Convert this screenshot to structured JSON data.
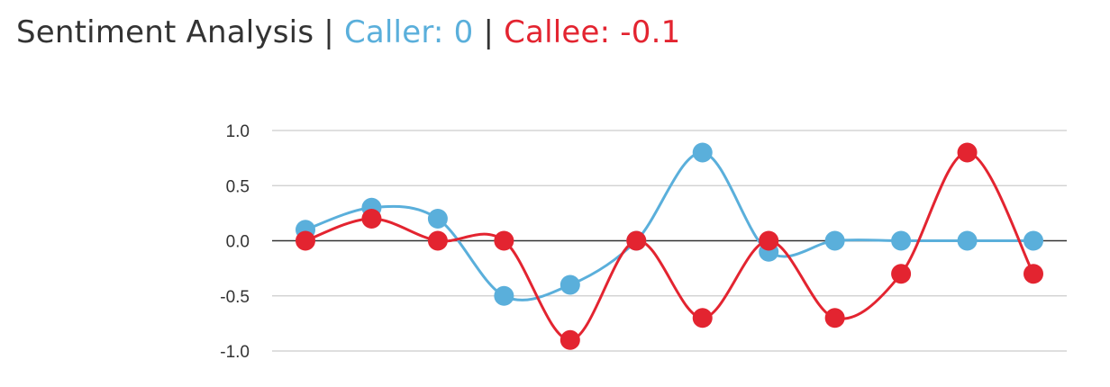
{
  "header": {
    "title": "Sentiment Analysis",
    "separator": "|",
    "caller_label": "Caller:",
    "caller_value": "0",
    "callee_label": "Callee:",
    "callee_value": "-0.1"
  },
  "chart_data": {
    "type": "line",
    "title": "",
    "xlabel": "",
    "ylabel": "",
    "x": [
      1,
      2,
      3,
      4,
      5,
      6,
      7,
      8,
      9,
      10,
      11,
      12
    ],
    "ylim": [
      -1.0,
      1.0
    ],
    "yticks": [
      "1.0",
      "0.5",
      "0.0",
      "-0.5",
      "-1.0"
    ],
    "ytick_values": [
      1.0,
      0.5,
      0.0,
      -0.5,
      -1.0
    ],
    "grid": true,
    "smooth": true,
    "series": [
      {
        "key": "caller",
        "color": "#5aafdb",
        "values": [
          0.1,
          0.3,
          0.2,
          -0.5,
          -0.4,
          0.0,
          0.8,
          -0.1,
          0.0,
          0.0,
          0.0,
          0.0
        ]
      },
      {
        "key": "callee",
        "color": "#e32430",
        "values": [
          0.0,
          0.2,
          0.0,
          0.0,
          -0.9,
          0.0,
          -0.7,
          0.0,
          -0.7,
          -0.3,
          0.8,
          -0.3
        ]
      }
    ]
  }
}
